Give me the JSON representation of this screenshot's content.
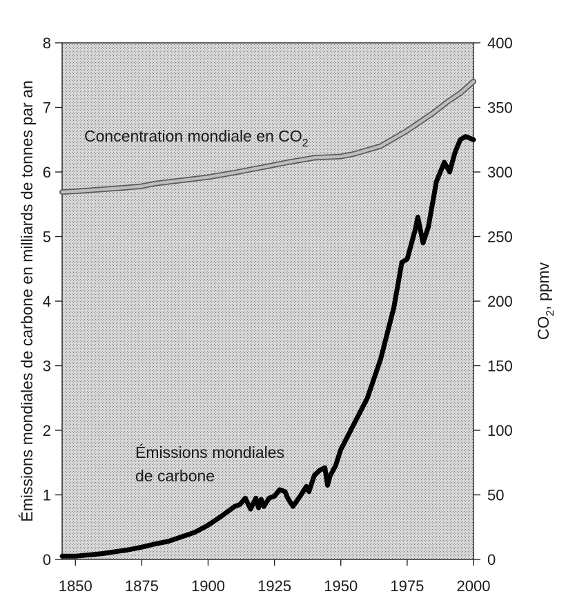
{
  "chart_data": {
    "type": "line",
    "title": "",
    "xlabel": "",
    "ylabel_left": "Émissions mondiales de carbone en milliards de tonnes par an",
    "ylabel_right": {
      "main": "CO",
      "sub": "2",
      "rest": ", ppmv"
    },
    "xlim": [
      1845,
      2000
    ],
    "ylim_left": [
      0,
      8
    ],
    "ylim_right": [
      0,
      400
    ],
    "xticks": [
      "1850",
      "1875",
      "1900",
      "1925",
      "1950",
      "1975",
      "2000"
    ],
    "yticks_left": [
      "0",
      "1",
      "2",
      "3",
      "4",
      "5",
      "6",
      "7",
      "8"
    ],
    "yticks_right": [
      "0",
      "50",
      "100",
      "150",
      "200",
      "250",
      "300",
      "350",
      "400"
    ],
    "grid": false,
    "annotations": {
      "co2_label": {
        "text": "Concentration mondiale en CO",
        "sub": "2"
      },
      "emissions_label": [
        "Émissions mondiales",
        "de carbone"
      ]
    },
    "series": [
      {
        "name": "Concentration mondiale en CO2",
        "axis": "right",
        "color": "#9a9a9a",
        "x": [
          1845,
          1850,
          1860,
          1870,
          1875,
          1880,
          1890,
          1900,
          1910,
          1920,
          1930,
          1940,
          1945,
          1950,
          1955,
          1960,
          1965,
          1970,
          1975,
          1980,
          1985,
          1990,
          1995,
          2000
        ],
        "y": [
          284.5,
          285,
          286.5,
          288,
          289,
          291,
          293.5,
          296,
          299.5,
          303.5,
          307.5,
          311,
          311.5,
          312,
          314,
          317,
          320,
          326,
          332,
          339,
          346,
          354,
          361,
          370
        ]
      },
      {
        "name": "Émissions mondiales de carbone",
        "axis": "left",
        "color": "#000000",
        "x": [
          1845,
          1850,
          1855,
          1860,
          1865,
          1870,
          1875,
          1880,
          1885,
          1890,
          1895,
          1900,
          1905,
          1910,
          1912,
          1914,
          1916,
          1918,
          1919,
          1920,
          1921,
          1923,
          1925,
          1927,
          1929,
          1930,
          1932,
          1935,
          1937,
          1938,
          1940,
          1942,
          1944,
          1945,
          1946,
          1948,
          1950,
          1955,
          1960,
          1965,
          1970,
          1973,
          1975,
          1978,
          1979,
          1981,
          1983,
          1986,
          1989,
          1991,
          1993,
          1995,
          1997,
          2000
        ],
        "y": [
          0.05,
          0.05,
          0.07,
          0.09,
          0.12,
          0.15,
          0.19,
          0.24,
          0.28,
          0.35,
          0.42,
          0.53,
          0.67,
          0.82,
          0.85,
          0.95,
          0.78,
          0.95,
          0.8,
          0.93,
          0.82,
          0.95,
          0.98,
          1.08,
          1.05,
          0.95,
          0.82,
          1.0,
          1.13,
          1.05,
          1.3,
          1.38,
          1.42,
          1.15,
          1.3,
          1.45,
          1.7,
          2.1,
          2.5,
          3.1,
          3.9,
          4.6,
          4.65,
          5.1,
          5.3,
          4.9,
          5.15,
          5.85,
          6.15,
          6.0,
          6.3,
          6.5,
          6.55,
          6.5
        ]
      }
    ]
  }
}
